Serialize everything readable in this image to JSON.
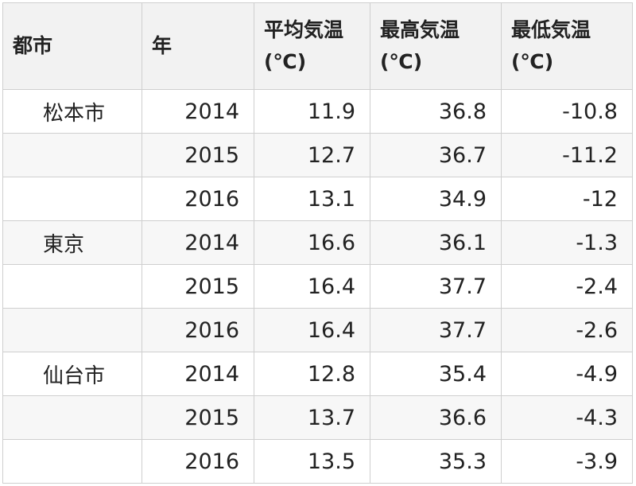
{
  "table": {
    "headers": [
      {
        "line1": "都市",
        "line2": ""
      },
      {
        "line1": "年",
        "line2": ""
      },
      {
        "line1": "平均気温",
        "line2": "(℃)"
      },
      {
        "line1": "最高気温",
        "line2": "(℃)"
      },
      {
        "line1": "最低気温",
        "line2": "(℃)"
      }
    ],
    "rows": [
      {
        "city": "松本市",
        "year": "2014",
        "avg": "11.9",
        "max": "36.8",
        "min": "-10.8"
      },
      {
        "city": "",
        "year": "2015",
        "avg": "12.7",
        "max": "36.7",
        "min": "-11.2"
      },
      {
        "city": "",
        "year": "2016",
        "avg": "13.1",
        "max": "34.9",
        "min": "-12"
      },
      {
        "city": "東京",
        "year": "2014",
        "avg": "16.6",
        "max": "36.1",
        "min": "-1.3"
      },
      {
        "city": "",
        "year": "2015",
        "avg": "16.4",
        "max": "37.7",
        "min": "-2.4"
      },
      {
        "city": "",
        "year": "2016",
        "avg": "16.4",
        "max": "37.7",
        "min": "-2.6"
      },
      {
        "city": "仙台市",
        "year": "2014",
        "avg": "12.8",
        "max": "35.4",
        "min": "-4.9"
      },
      {
        "city": "",
        "year": "2015",
        "avg": "13.7",
        "max": "36.6",
        "min": "-4.3"
      },
      {
        "city": "",
        "year": "2016",
        "avg": "13.5",
        "max": "35.3",
        "min": "-3.9"
      }
    ]
  }
}
